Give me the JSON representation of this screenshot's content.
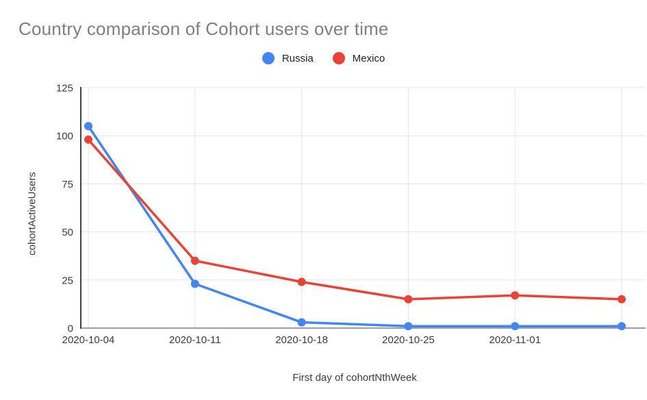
{
  "chart_data": {
    "type": "line",
    "title": "Country comparison of Cohort users over time",
    "xlabel": "First day of cohortNthWeek",
    "ylabel": "cohortActiveUsers",
    "x_tick_labels": [
      "2020-10-04",
      "2020-10-11",
      "2020-10-18",
      "2020-10-25",
      "2020-11-01",
      ""
    ],
    "y_ticks": [
      0,
      25,
      50,
      75,
      100,
      125
    ],
    "ylim": [
      0,
      125
    ],
    "grid": true,
    "legend_position": "top-center",
    "series": [
      {
        "name": "Russia",
        "color": "#4285F4",
        "values": [
          105,
          23,
          3,
          1,
          1,
          1
        ]
      },
      {
        "name": "Mexico",
        "color": "#EA4335",
        "values": [
          98,
          35,
          24,
          15,
          17,
          15
        ]
      }
    ]
  },
  "colors": {
    "title_text": "#7f7f7f",
    "axis_text": "#3c3c3c",
    "legend_text": "#212121",
    "gridline": "#e6e6e6",
    "baseline": "#9e9e9e",
    "y_axis_line": "#424242",
    "background": "#ffffff"
  }
}
